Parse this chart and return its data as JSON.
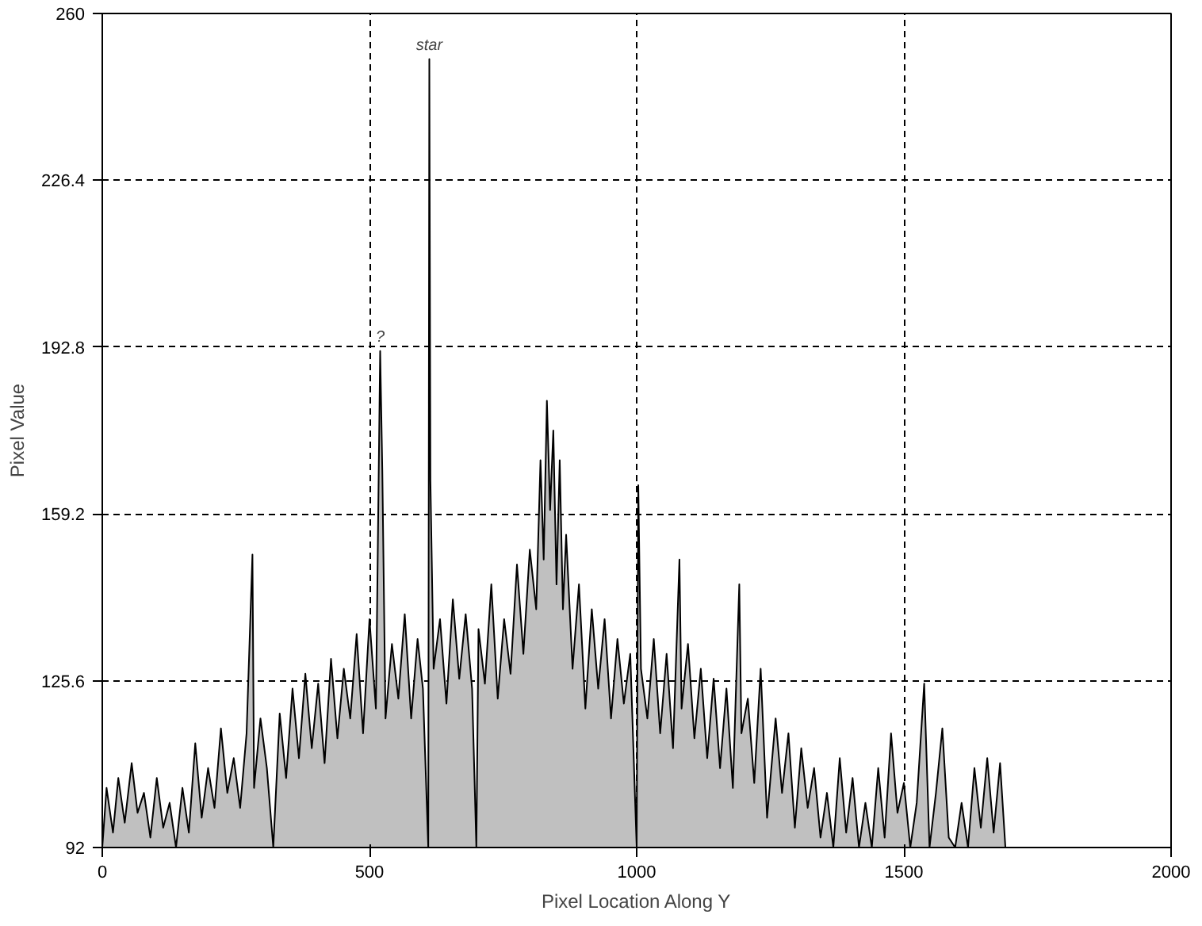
{
  "chart_data": {
    "type": "area",
    "xlabel": "Pixel Location Along Y",
    "ylabel": "Pixel Value",
    "x": [
      0,
      8,
      20,
      30,
      42,
      55,
      66,
      78,
      90,
      102,
      114,
      126,
      138,
      150,
      162,
      174,
      186,
      198,
      210,
      222,
      234,
      246,
      258,
      270,
      281,
      284,
      296,
      308,
      320,
      332,
      344,
      356,
      368,
      380,
      392,
      404,
      416,
      428,
      440,
      452,
      464,
      476,
      488,
      500,
      512,
      520,
      524,
      530,
      542,
      554,
      566,
      578,
      590,
      600,
      610,
      612,
      614,
      620,
      632,
      644,
      656,
      668,
      680,
      692,
      700,
      704,
      716,
      728,
      740,
      752,
      764,
      776,
      788,
      800,
      812,
      820,
      826,
      832,
      838,
      844,
      850,
      856,
      862,
      868,
      880,
      892,
      904,
      916,
      928,
      940,
      952,
      964,
      976,
      988,
      1000,
      1003,
      1008,
      1020,
      1032,
      1044,
      1056,
      1068,
      1080,
      1084,
      1096,
      1108,
      1120,
      1132,
      1144,
      1156,
      1168,
      1180,
      1192,
      1196,
      1208,
      1220,
      1232,
      1244,
      1260,
      1272,
      1284,
      1296,
      1308,
      1320,
      1332,
      1344,
      1356,
      1368,
      1380,
      1392,
      1404,
      1416,
      1428,
      1440,
      1452,
      1464,
      1476,
      1488,
      1500,
      1512,
      1524,
      1538,
      1548,
      1560,
      1572,
      1584,
      1596,
      1608,
      1620,
      1632,
      1644,
      1656,
      1668,
      1680,
      1690
    ],
    "series": [
      {
        "color": "#c0c0c0",
        "values": [
          92,
          104,
          95,
          106,
          97,
          109,
          99,
          103,
          94,
          106,
          96,
          101,
          92,
          104,
          95,
          113,
          98,
          108,
          100,
          116,
          103,
          110,
          100,
          115,
          151,
          104,
          118,
          108,
          92,
          119,
          106,
          124,
          110,
          127,
          112,
          125,
          109,
          130,
          114,
          128,
          118,
          135,
          115,
          138,
          120,
          192,
          168,
          118,
          133,
          122,
          139,
          118,
          134,
          124,
          92,
          250.8,
          166,
          128,
          138,
          121,
          142,
          126,
          139,
          124,
          92,
          136,
          125,
          145,
          122,
          138,
          127,
          149,
          131,
          152,
          140,
          170,
          150,
          182,
          160,
          176,
          145,
          170,
          140,
          155,
          128,
          145,
          120,
          140,
          124,
          138,
          118,
          134,
          121,
          131,
          92,
          165,
          128,
          118,
          134,
          115,
          131,
          112,
          150,
          120,
          133,
          114,
          128,
          110,
          126,
          108,
          124,
          104,
          145,
          115,
          122,
          105,
          128,
          98,
          118,
          103,
          115,
          96,
          112,
          100,
          108,
          94,
          103,
          92,
          110,
          95,
          106,
          92,
          101,
          92,
          108,
          94,
          115,
          99,
          105,
          92,
          101,
          125,
          92,
          103,
          116,
          94,
          92,
          101,
          92,
          108,
          96,
          110,
          95,
          109,
          92
        ]
      }
    ],
    "xlim": [
      0,
      2000
    ],
    "ylim": [
      92,
      260
    ],
    "xticks": [
      0,
      500,
      1000,
      1500,
      2000
    ],
    "yticks": [
      92,
      125.6,
      159.2,
      192.8,
      226.4,
      260
    ],
    "grid": true,
    "annotations": [
      {
        "text": "star",
        "x": 612,
        "y": 250.8
      },
      {
        "text": "?",
        "x": 520,
        "y": 192
      }
    ]
  }
}
